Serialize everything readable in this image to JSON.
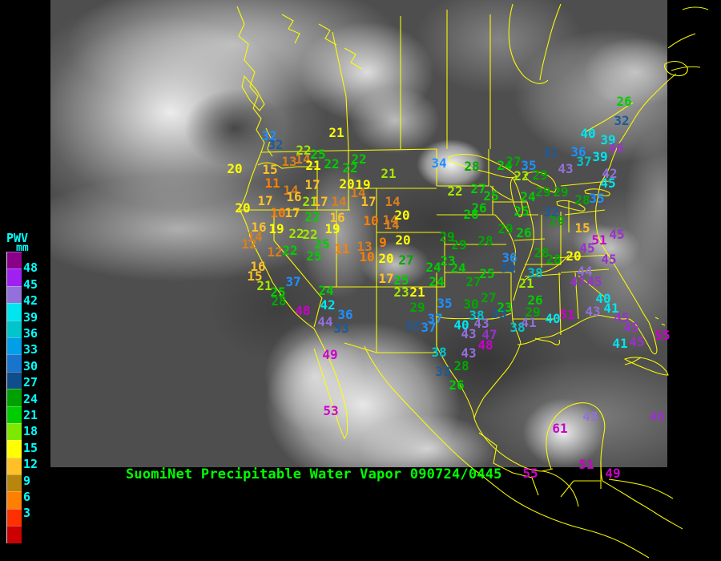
{
  "footer": {
    "text": "SuomiNet Precipitable Water Vapor 090724/0445",
    "color": "#00FF00"
  },
  "legend": {
    "title": "PWV",
    "unit": "mm",
    "text_color": "#00FFFF",
    "cells": [
      "#8B008B",
      "#A020F0",
      "#9370DB",
      "#00E5EE",
      "#00C5CD",
      "#009FE8",
      "#1874CD",
      "#104E8B",
      "#00A000",
      "#00CD00",
      "#7FE800",
      "#FFFF00",
      "#FFC125",
      "#B8860B",
      "#FF7F00",
      "#FF3000",
      "#CC0000"
    ],
    "labels": [
      "48",
      "45",
      "42",
      "39",
      "36",
      "33",
      "30",
      "27",
      "24",
      "21",
      "18",
      "15",
      "12",
      "9",
      "6",
      "3"
    ]
  },
  "map": {
    "outline_color": "#FFFF00"
  },
  "palette": {
    "m": "#CC00CC",
    "p": "#9932CC",
    "lp": "#9370DB",
    "cy": "#00E5EE",
    "te": "#00C5CD",
    "sb": "#1E90FF",
    "db": "#1C5A9C",
    "dg": "#00A800",
    "g": "#00CD00",
    "yg": "#A2E800",
    "y": "#FFFF00",
    "go": "#FFC125",
    "o12": "#DB7F1E",
    "o": "#FF7F00"
  },
  "stations": [
    [
      "21",
      420,
      166,
      "y"
    ],
    [
      "32",
      336,
      170,
      "sb"
    ],
    [
      "32",
      344,
      181,
      "db"
    ],
    [
      "22",
      379,
      188,
      "yg"
    ],
    [
      "25",
      397,
      193,
      "g"
    ],
    [
      "13",
      361,
      202,
      "o12"
    ],
    [
      "14",
      378,
      199,
      "o12"
    ],
    [
      "21",
      391,
      207,
      "y"
    ],
    [
      "22",
      414,
      205,
      "g"
    ],
    [
      "22",
      448,
      199,
      "g"
    ],
    [
      "22",
      437,
      210,
      "g"
    ],
    [
      "20",
      293,
      211,
      "y"
    ],
    [
      "15",
      337,
      212,
      "go"
    ],
    [
      "21",
      485,
      217,
      "yg"
    ],
    [
      "11",
      340,
      229,
      "o"
    ],
    [
      "17",
      390,
      231,
      "go"
    ],
    [
      "20",
      433,
      230,
      "y"
    ],
    [
      "19",
      453,
      231,
      "y"
    ],
    [
      "14",
      363,
      238,
      "o12"
    ],
    [
      "14",
      447,
      241,
      "o12"
    ],
    [
      "16",
      367,
      246,
      "go"
    ],
    [
      "17",
      331,
      251,
      "go"
    ],
    [
      "21",
      387,
      252,
      "yg"
    ],
    [
      "17",
      400,
      252,
      "go"
    ],
    [
      "14",
      423,
      252,
      "o12"
    ],
    [
      "17",
      460,
      252,
      "go"
    ],
    [
      "14",
      490,
      252,
      "o12"
    ],
    [
      "20",
      303,
      260,
      "y"
    ],
    [
      "10",
      347,
      266,
      "o"
    ],
    [
      "17",
      365,
      266,
      "go"
    ],
    [
      "22",
      390,
      271,
      "g"
    ],
    [
      "16",
      421,
      272,
      "go"
    ],
    [
      "10",
      463,
      276,
      "o"
    ],
    [
      "14",
      487,
      275,
      "o12"
    ],
    [
      "16",
      323,
      284,
      "go"
    ],
    [
      "19",
      345,
      286,
      "y"
    ],
    [
      "19",
      415,
      286,
      "y"
    ],
    [
      "22",
      370,
      292,
      "yg"
    ],
    [
      "22",
      387,
      293,
      "yg"
    ],
    [
      "14",
      318,
      296,
      "o12"
    ],
    [
      "12",
      311,
      305,
      "o12"
    ],
    [
      "25",
      402,
      305,
      "g"
    ],
    [
      "13",
      455,
      308,
      "o12"
    ],
    [
      "9",
      478,
      303,
      "o"
    ],
    [
      "11",
      427,
      311,
      "o"
    ],
    [
      "12",
      343,
      315,
      "o12"
    ],
    [
      "22",
      362,
      313,
      "g"
    ],
    [
      "25",
      392,
      320,
      "g"
    ],
    [
      "10",
      458,
      321,
      "o"
    ],
    [
      "20",
      482,
      323,
      "y"
    ],
    [
      "16",
      322,
      333,
      "go"
    ],
    [
      "15",
      318,
      345,
      "go"
    ],
    [
      "17",
      482,
      348,
      "go"
    ],
    [
      "21",
      330,
      357,
      "yg"
    ],
    [
      "37",
      366,
      352,
      "sb"
    ],
    [
      "25",
      347,
      365,
      "g"
    ],
    [
      "24",
      407,
      363,
      "g"
    ],
    [
      "28",
      348,
      376,
      "dg"
    ],
    [
      "42",
      409,
      381,
      "cy"
    ],
    [
      "48",
      378,
      388,
      "m"
    ],
    [
      "36",
      431,
      393,
      "sb"
    ],
    [
      "44",
      406,
      402,
      "lp"
    ],
    [
      "33",
      426,
      410,
      "db"
    ],
    [
      "49",
      412,
      443,
      "m"
    ],
    [
      "53",
      413,
      513,
      "m"
    ],
    [
      "34",
      548,
      204,
      "sb"
    ],
    [
      "28",
      589,
      208,
      "dg"
    ],
    [
      "14",
      489,
      281,
      "o12"
    ],
    [
      "20",
      502,
      269,
      "y"
    ],
    [
      "20",
      503,
      300,
      "y"
    ],
    [
      "22",
      568,
      239,
      "yg"
    ],
    [
      "27",
      597,
      236,
      "g"
    ],
    [
      "25",
      613,
      245,
      "g"
    ],
    [
      "26",
      598,
      260,
      "g"
    ],
    [
      "26",
      588,
      268,
      "g"
    ],
    [
      "24",
      630,
      207,
      "g"
    ],
    [
      "27",
      641,
      202,
      "dg"
    ],
    [
      "35",
      660,
      207,
      "sb"
    ],
    [
      "31",
      687,
      191,
      "db"
    ],
    [
      "22",
      651,
      220,
      "yg"
    ],
    [
      "29",
      674,
      219,
      "dg"
    ],
    [
      "43",
      706,
      211,
      "lp"
    ],
    [
      "24",
      659,
      246,
      "g"
    ],
    [
      "29",
      678,
      240,
      "dg"
    ],
    [
      "29",
      700,
      240,
      "dg"
    ],
    [
      "25",
      651,
      264,
      "g"
    ],
    [
      "32",
      688,
      265,
      "db"
    ],
    [
      "29",
      695,
      276,
      "dg"
    ],
    [
      "29",
      631,
      286,
      "dg"
    ],
    [
      "26",
      654,
      291,
      "g"
    ],
    [
      "29",
      558,
      296,
      "dg"
    ],
    [
      "29",
      573,
      306,
      "dg"
    ],
    [
      "28",
      606,
      301,
      "dg"
    ],
    [
      "36",
      636,
      322,
      "sb"
    ],
    [
      "30",
      634,
      335,
      "db"
    ],
    [
      "28",
      676,
      316,
      "dg"
    ],
    [
      "27",
      507,
      325,
      "dg"
    ],
    [
      "23",
      559,
      326,
      "g"
    ],
    [
      "24",
      541,
      334,
      "g"
    ],
    [
      "24",
      572,
      335,
      "g"
    ],
    [
      "26",
      779,
      127,
      "g"
    ],
    [
      "32",
      776,
      151,
      "db"
    ],
    [
      "25",
      501,
      350,
      "g"
    ],
    [
      "23",
      501,
      365,
      "yg"
    ],
    [
      "21",
      521,
      365,
      "y"
    ],
    [
      "24",
      545,
      352,
      "g"
    ],
    [
      "27",
      591,
      352,
      "dg"
    ],
    [
      "25",
      608,
      342,
      "g"
    ],
    [
      "29",
      521,
      384,
      "dg"
    ],
    [
      "35",
      555,
      379,
      "sb"
    ],
    [
      "30",
      588,
      380,
      "dg"
    ],
    [
      "27",
      610,
      372,
      "dg"
    ],
    [
      "23",
      630,
      384,
      "g"
    ],
    [
      "26",
      668,
      375,
      "g"
    ],
    [
      "21",
      657,
      354,
      "yg"
    ],
    [
      "38",
      668,
      341,
      "te"
    ],
    [
      "29",
      665,
      390,
      "dg"
    ],
    [
      "33",
      623,
      392,
      "db"
    ],
    [
      "37",
      543,
      398,
      "sb"
    ],
    [
      "38",
      595,
      394,
      "te"
    ],
    [
      "32",
      515,
      407,
      "db"
    ],
    [
      "37",
      535,
      409,
      "sb"
    ],
    [
      "40",
      576,
      406,
      "cy"
    ],
    [
      "43",
      601,
      404,
      "lp"
    ],
    [
      "43",
      585,
      417,
      "lp"
    ],
    [
      "47",
      611,
      418,
      "p"
    ],
    [
      "48",
      606,
      431,
      "m"
    ],
    [
      "38",
      646,
      409,
      "te"
    ],
    [
      "41",
      660,
      403,
      "lp"
    ],
    [
      "40",
      690,
      398,
      "cy"
    ],
    [
      "43",
      585,
      441,
      "lp"
    ],
    [
      "38",
      548,
      440,
      "te"
    ],
    [
      "33",
      553,
      464,
      "db"
    ],
    [
      "28",
      576,
      457,
      "dg"
    ],
    [
      "26",
      570,
      481,
      "g"
    ],
    [
      "40",
      734,
      167,
      "cy"
    ],
    [
      "39",
      759,
      175,
      "cy"
    ],
    [
      "46",
      769,
      185,
      "p"
    ],
    [
      "36",
      722,
      190,
      "sb"
    ],
    [
      "39",
      749,
      196,
      "cy"
    ],
    [
      "37",
      729,
      202,
      "te"
    ],
    [
      "42",
      761,
      217,
      "lp"
    ],
    [
      "45",
      759,
      229,
      "cy"
    ],
    [
      "28",
      727,
      250,
      "dg"
    ],
    [
      "35",
      745,
      248,
      "sb"
    ],
    [
      "15",
      727,
      285,
      "go"
    ],
    [
      "51",
      748,
      300,
      "m"
    ],
    [
      "45",
      770,
      293,
      "p"
    ],
    [
      "45",
      733,
      310,
      "p"
    ],
    [
      "20",
      716,
      320,
      "y"
    ],
    [
      "28",
      691,
      324,
      "dg"
    ],
    [
      "45",
      760,
      324,
      "p"
    ],
    [
      "44",
      730,
      339,
      "lp"
    ],
    [
      "47",
      721,
      352,
      "p"
    ],
    [
      "45",
      742,
      352,
      "p"
    ],
    [
      "40",
      753,
      373,
      "cy"
    ],
    [
      "41",
      763,
      385,
      "cy"
    ],
    [
      "43",
      740,
      389,
      "lp"
    ],
    [
      "51",
      708,
      393,
      "m"
    ],
    [
      "45",
      776,
      397,
      "p"
    ],
    [
      "45",
      788,
      409,
      "p"
    ],
    [
      "41",
      774,
      429,
      "cy"
    ],
    [
      "45",
      795,
      427,
      "p"
    ],
    [
      "55",
      827,
      419,
      "m"
    ],
    [
      "61",
      699,
      535,
      "m"
    ],
    [
      "43",
      737,
      520,
      "lp"
    ],
    [
      "46",
      820,
      520,
      "p"
    ],
    [
      "51",
      732,
      580,
      "m"
    ],
    [
      "55",
      662,
      591,
      "m"
    ],
    [
      "49",
      765,
      591,
      "m"
    ]
  ]
}
